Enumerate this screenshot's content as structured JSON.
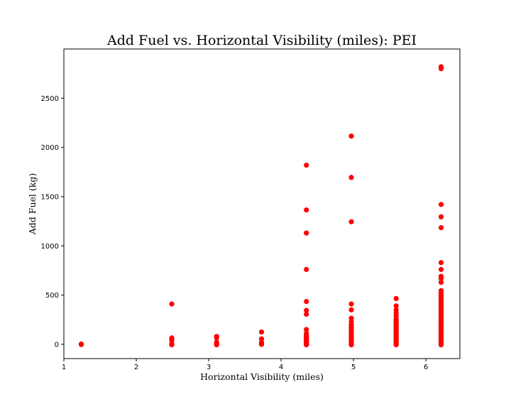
{
  "chart_data": {
    "type": "scatter",
    "title": "Add Fuel vs. Horizontal Visibility (miles): PEI",
    "xlabel": "Horizontal Visibility (miles)",
    "ylabel": "Add Fuel (kg)",
    "xlim": [
      1.0,
      6.47
    ],
    "ylim": [
      -145,
      3000
    ],
    "xticks": [
      "1",
      "2",
      "3",
      "4",
      "5",
      "6"
    ],
    "yticks": [
      "0",
      "500",
      "1000",
      "1500",
      "2000",
      "2500"
    ],
    "grid": false,
    "legend": "none",
    "marker_color": "#ff0000",
    "series": [
      {
        "x": [
          1.24,
          1.24,
          1.24,
          2.49,
          2.49,
          2.49,
          2.49,
          2.49,
          2.49,
          2.49,
          3.11,
          3.11,
          3.11,
          3.11,
          3.11,
          3.11,
          3.73,
          3.73,
          3.73,
          3.73,
          3.73,
          4.35,
          4.35,
          4.35,
          4.35,
          4.35,
          4.35,
          4.35,
          4.35,
          4.35,
          4.35,
          4.35,
          4.35,
          4.35,
          4.35,
          4.35,
          4.35,
          4.35,
          4.35,
          4.35,
          4.35,
          4.35,
          4.35,
          4.35,
          4.97,
          4.97,
          4.97,
          4.97,
          4.97,
          4.97,
          4.97,
          4.97,
          4.97,
          4.97,
          4.97,
          4.97,
          4.97,
          4.97,
          4.97,
          4.97,
          4.97,
          4.97,
          4.97,
          4.97,
          4.97,
          4.97,
          4.97,
          4.97,
          4.97,
          4.97,
          5.59,
          5.59,
          5.59,
          5.59,
          5.59,
          5.59,
          5.59,
          5.59,
          5.59,
          5.59,
          5.59,
          5.59,
          5.59,
          5.59,
          5.59,
          5.59,
          5.59,
          5.59,
          5.59,
          5.59,
          5.59,
          5.59,
          5.59,
          5.59,
          5.59,
          5.59,
          5.59,
          5.59,
          5.59,
          5.59,
          5.59,
          5.59,
          5.59,
          5.59,
          6.21,
          6.21,
          6.21,
          6.21,
          6.21,
          6.21,
          6.21,
          6.21,
          6.21,
          6.21,
          6.21,
          6.21,
          6.21,
          6.21,
          6.21,
          6.21,
          6.21,
          6.21,
          6.21,
          6.21,
          6.21,
          6.21,
          6.21,
          6.21,
          6.21,
          6.21,
          6.21,
          6.21,
          6.21,
          6.21,
          6.21,
          6.21,
          6.21,
          6.21,
          6.21,
          6.21,
          6.21,
          6.21,
          6.21,
          6.21,
          6.21,
          6.21,
          6.21,
          6.21,
          6.21,
          6.21,
          6.21,
          6.21,
          6.21,
          6.21,
          6.21,
          6.21,
          6.21,
          6.21,
          6.21,
          6.21
        ],
        "y": [
          0,
          3,
          -3,
          410,
          65,
          55,
          40,
          5,
          0,
          -5,
          80,
          65,
          20,
          10,
          0,
          -5,
          125,
          55,
          20,
          5,
          0,
          1820,
          1365,
          1130,
          760,
          435,
          345,
          305,
          150,
          110,
          90,
          70,
          55,
          40,
          30,
          20,
          10,
          5,
          0,
          -5,
          80,
          60,
          45,
          25,
          2115,
          1695,
          1245,
          410,
          350,
          265,
          230,
          190,
          160,
          140,
          120,
          105,
          90,
          75,
          60,
          45,
          35,
          25,
          15,
          5,
          0,
          -5,
          200,
          170,
          110,
          70,
          465,
          390,
          350,
          320,
          290,
          260,
          240,
          220,
          200,
          180,
          160,
          140,
          120,
          105,
          90,
          75,
          60,
          45,
          30,
          20,
          10,
          0,
          -5,
          250,
          230,
          210,
          190,
          170,
          150,
          130,
          110,
          85,
          65,
          40,
          2820,
          2800,
          1420,
          1295,
          1185,
          830,
          760,
          690,
          670,
          630,
          545,
          520,
          490,
          470,
          450,
          430,
          410,
          390,
          370,
          350,
          330,
          310,
          290,
          270,
          250,
          230,
          210,
          190,
          170,
          150,
          130,
          110,
          95,
          80,
          65,
          50,
          35,
          20,
          10,
          0,
          -5,
          500,
          480,
          460,
          440,
          420,
          400,
          380,
          360,
          340,
          320,
          300,
          280,
          260,
          240,
          220
        ]
      }
    ]
  }
}
